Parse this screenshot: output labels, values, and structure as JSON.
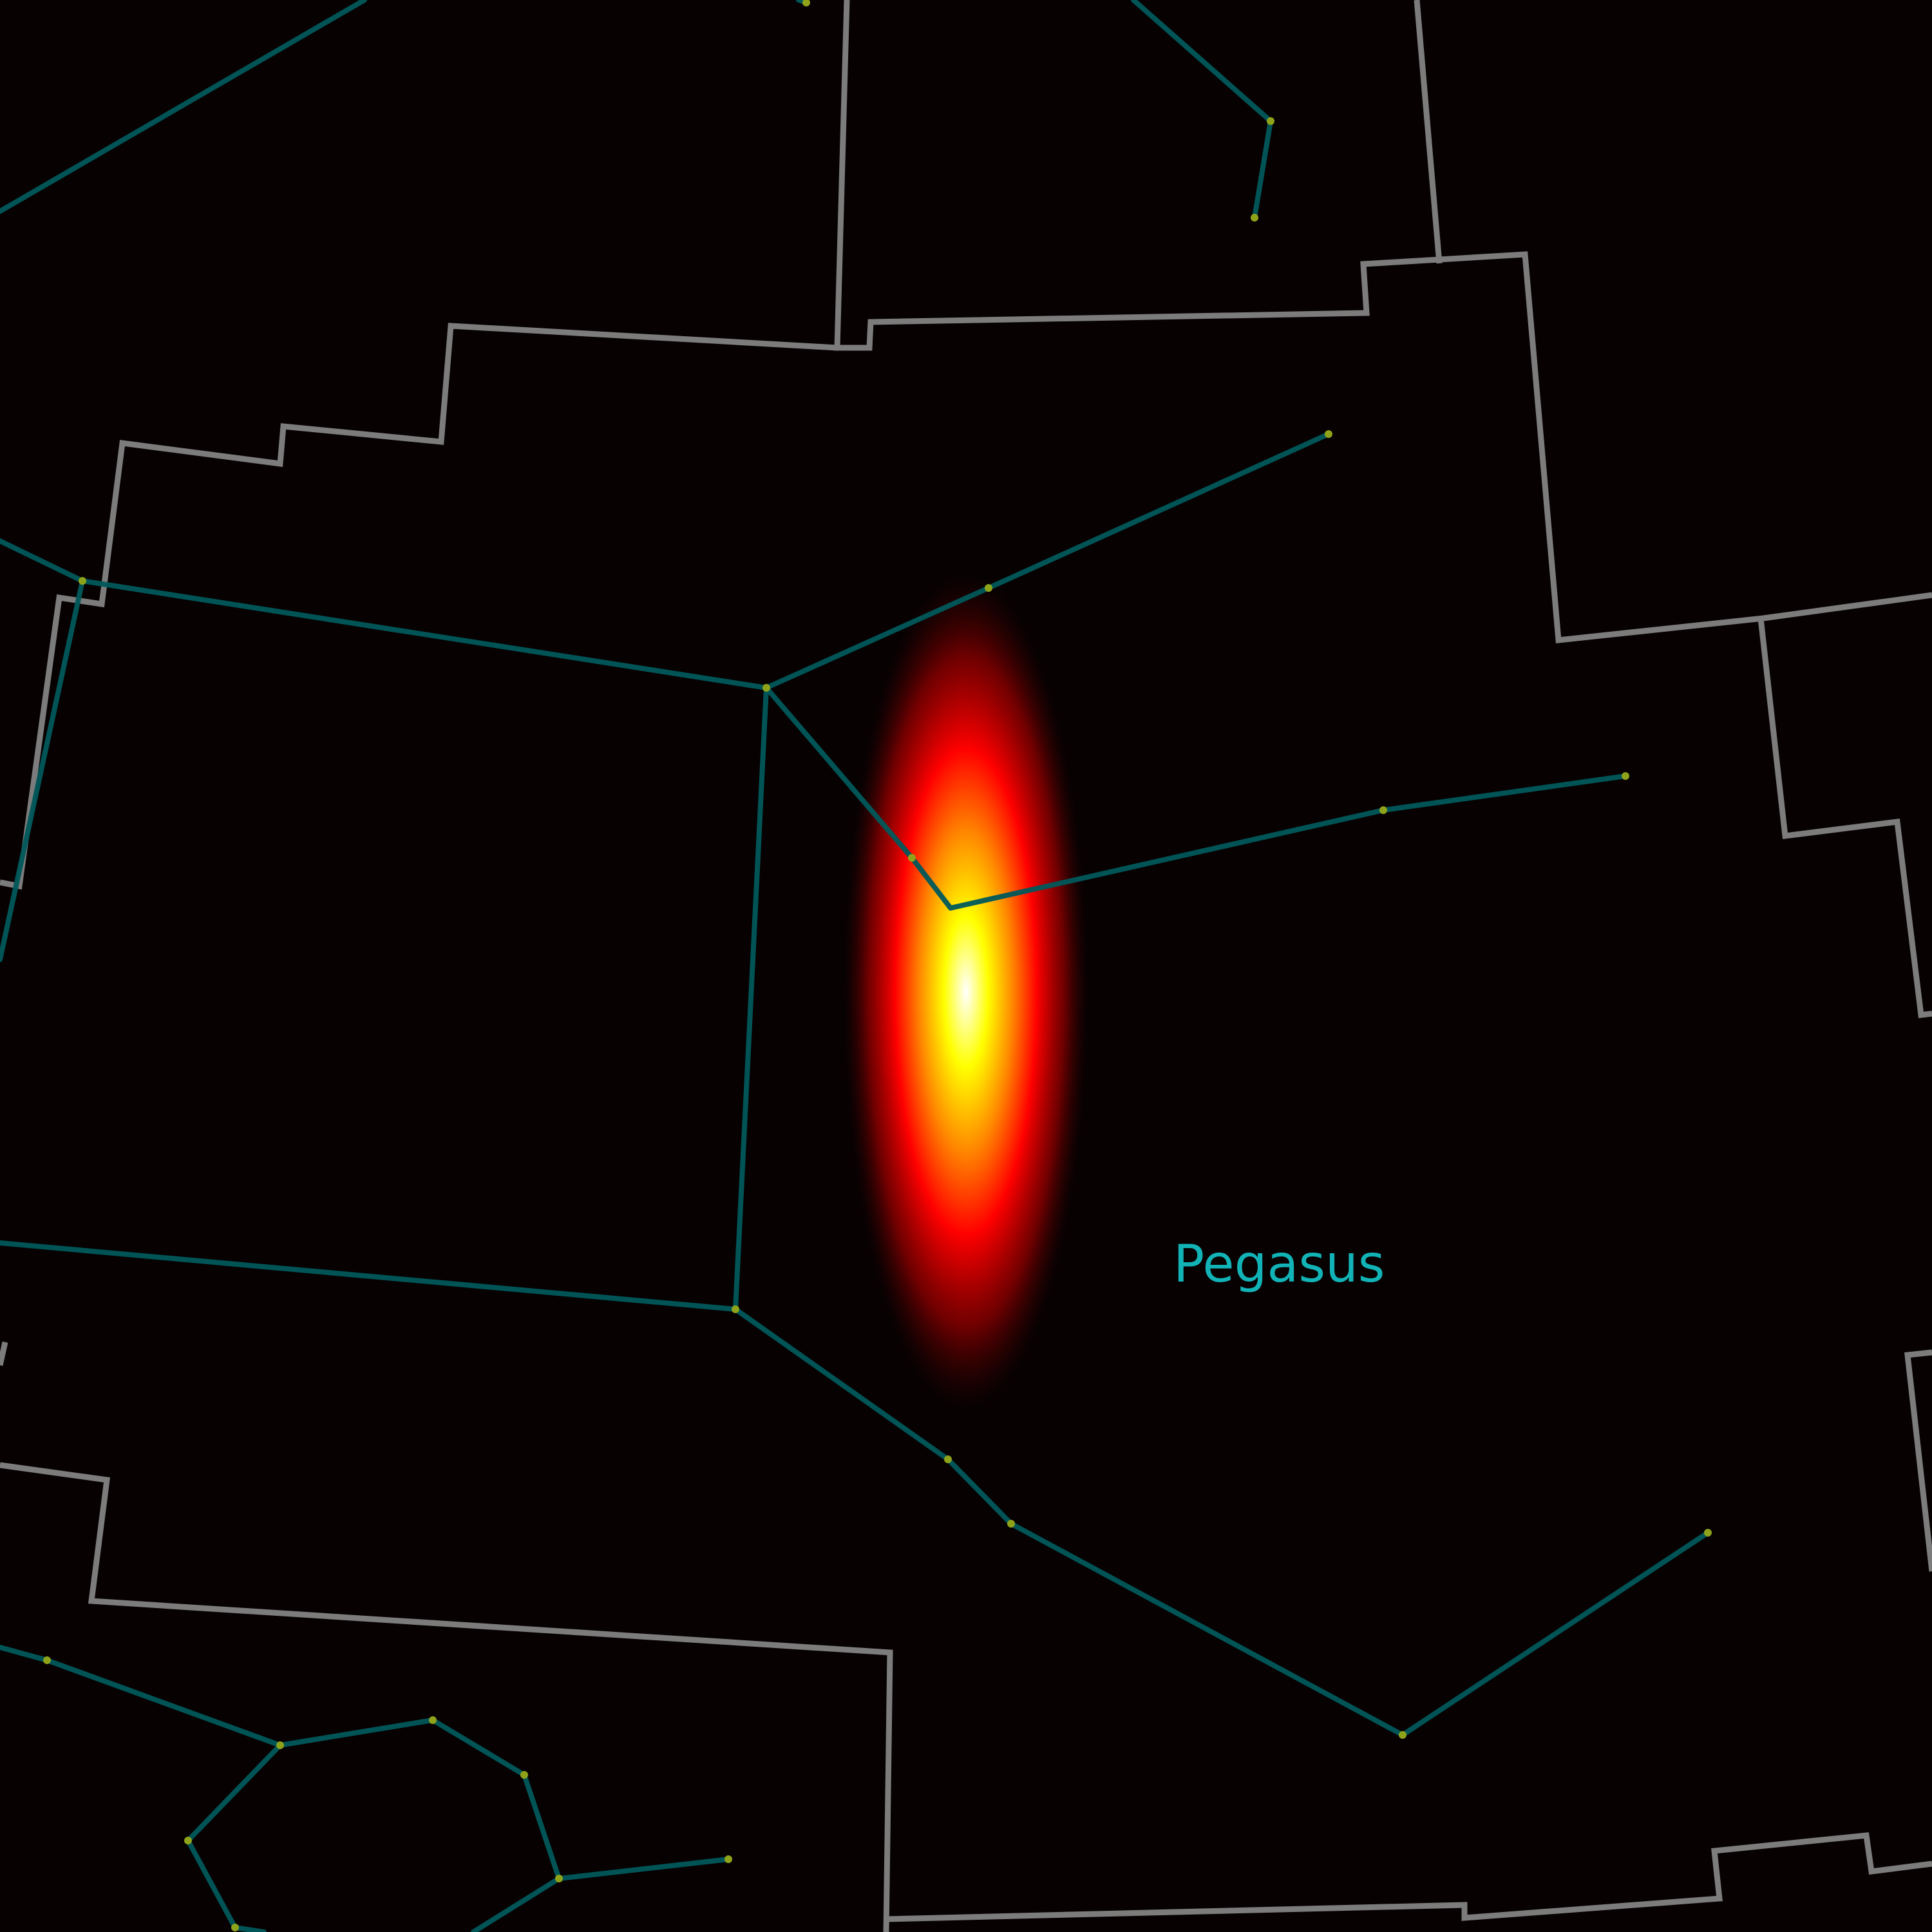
{
  "map": {
    "background": "#070102",
    "boundary_color": "#7c7c7c",
    "figure_color": "#00585b",
    "star_color": "#8fa31a",
    "label_color": "#12b3b6"
  },
  "labels": {
    "constellation": "Pegasus"
  },
  "hotspot": {
    "colors": [
      "#ffffff",
      "#ffff00",
      "#ff8800",
      "#ff0000",
      "#8a0000"
    ]
  }
}
